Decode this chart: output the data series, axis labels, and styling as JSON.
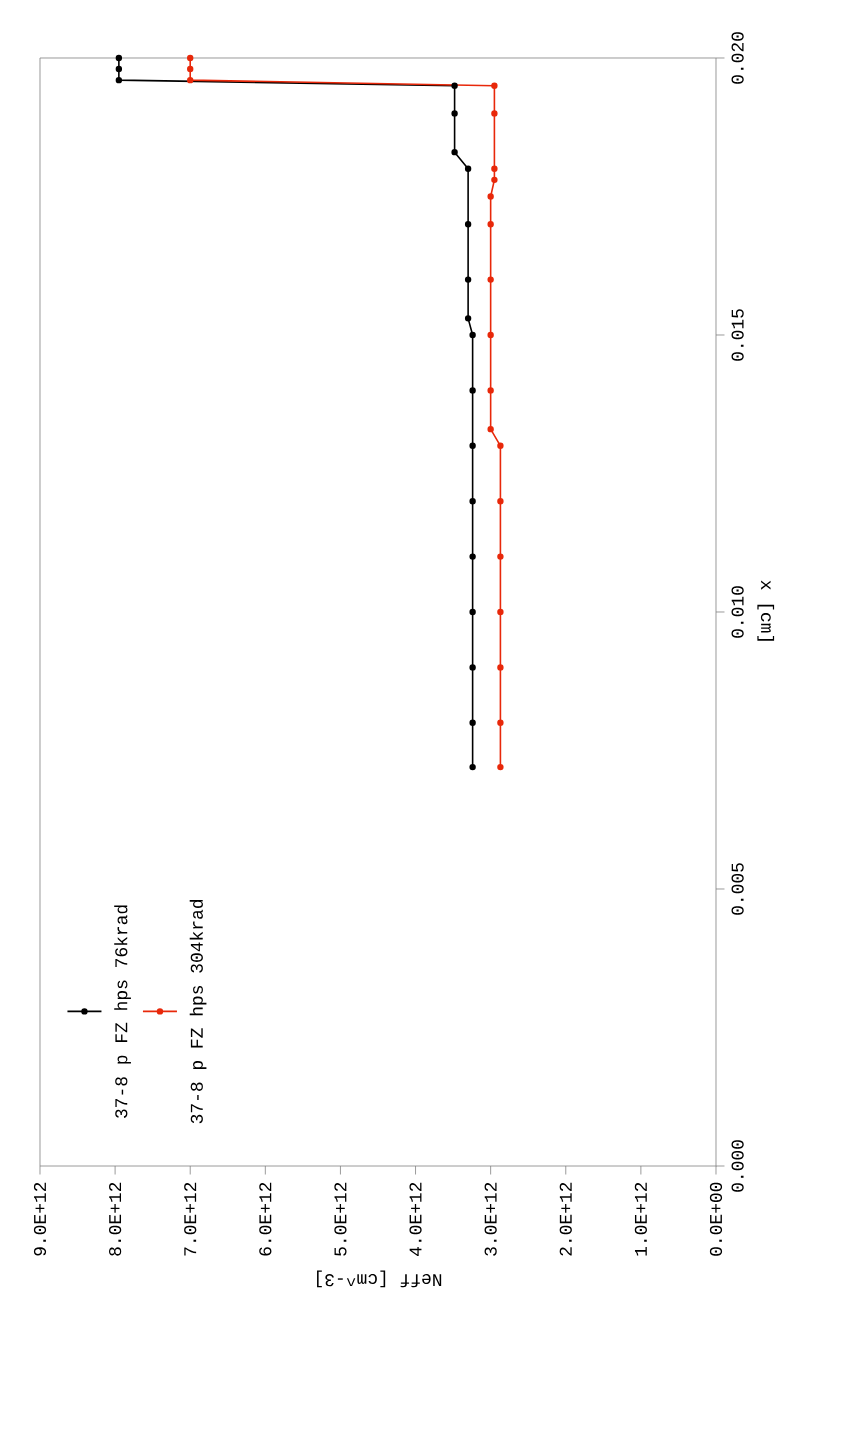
{
  "chart_data": {
    "type": "line",
    "xlabel": "Neff [cm^-3]",
    "ylabel": "x [cm]",
    "xlim": [
      9000000000000.0,
      0
    ],
    "ylim": [
      0,
      0.02
    ],
    "xticks": [
      {
        "value": 0,
        "label": "0.0E+00"
      },
      {
        "value": 1000000000000.0,
        "label": "1.0E+12"
      },
      {
        "value": 2000000000000.0,
        "label": "2.0E+12"
      },
      {
        "value": 3000000000000.0,
        "label": "3.0E+12"
      },
      {
        "value": 4000000000000.0,
        "label": "4.0E+12"
      },
      {
        "value": 5000000000000.0,
        "label": "5.0E+12"
      },
      {
        "value": 6000000000000.0,
        "label": "6.0E+12"
      },
      {
        "value": 7000000000000.0,
        "label": "7.0E+12"
      },
      {
        "value": 8000000000000.0,
        "label": "8.0E+12"
      },
      {
        "value": 9000000000000.0,
        "label": "9.0E+12"
      }
    ],
    "yticks": [
      {
        "value": 0,
        "label": "0.000"
      },
      {
        "value": 0.005,
        "label": "0.005"
      },
      {
        "value": 0.01,
        "label": "0.010"
      },
      {
        "value": 0.015,
        "label": "0.015"
      },
      {
        "value": 0.02,
        "label": "0.020"
      }
    ],
    "legend": "bottom left",
    "marker": "circle",
    "grid": false,
    "series": [
      {
        "name": "37-8 p FZ hps 76krad",
        "color": "#000000",
        "values": [
          0.0072,
          0.008,
          0.009,
          0.01,
          0.011,
          0.012,
          0.013,
          0.014,
          0.015,
          0.0153,
          0.016,
          0.017,
          0.018,
          0.0183,
          0.019,
          0.0195,
          0.0196,
          0.0198,
          0.02
        ],
        "x": [
          3240000000000.0,
          3240000000000.0,
          3240000000000.0,
          3240000000000.0,
          3240000000000.0,
          3240000000000.0,
          3240000000000.0,
          3240000000000.0,
          3240000000000.0,
          3300000000000.0,
          3300000000000.0,
          3300000000000.0,
          3300000000000.0,
          3480000000000.0,
          3480000000000.0,
          3480000000000.0,
          7950000000000.0,
          7950000000000.0,
          7950000000000.0
        ]
      },
      {
        "name": "37-8 p FZ hps 304krad",
        "color": "#e8280a",
        "values": [
          0.0072,
          0.008,
          0.009,
          0.01,
          0.011,
          0.012,
          0.013,
          0.0133,
          0.014,
          0.015,
          0.016,
          0.017,
          0.0175,
          0.0178,
          0.018,
          0.019,
          0.0195,
          0.0196,
          0.0198,
          0.02
        ],
        "x": [
          2870000000000.0,
          2870000000000.0,
          2870000000000.0,
          2870000000000.0,
          2870000000000.0,
          2870000000000.0,
          2870000000000.0,
          3000000000000.0,
          3000000000000.0,
          3000000000000.0,
          3000000000000.0,
          3000000000000.0,
          3000000000000.0,
          2950000000000.0,
          2950000000000.0,
          2950000000000.0,
          2950000000000.0,
          7000000000000.0,
          7000000000000.0,
          7000000000000.0
        ]
      }
    ]
  }
}
